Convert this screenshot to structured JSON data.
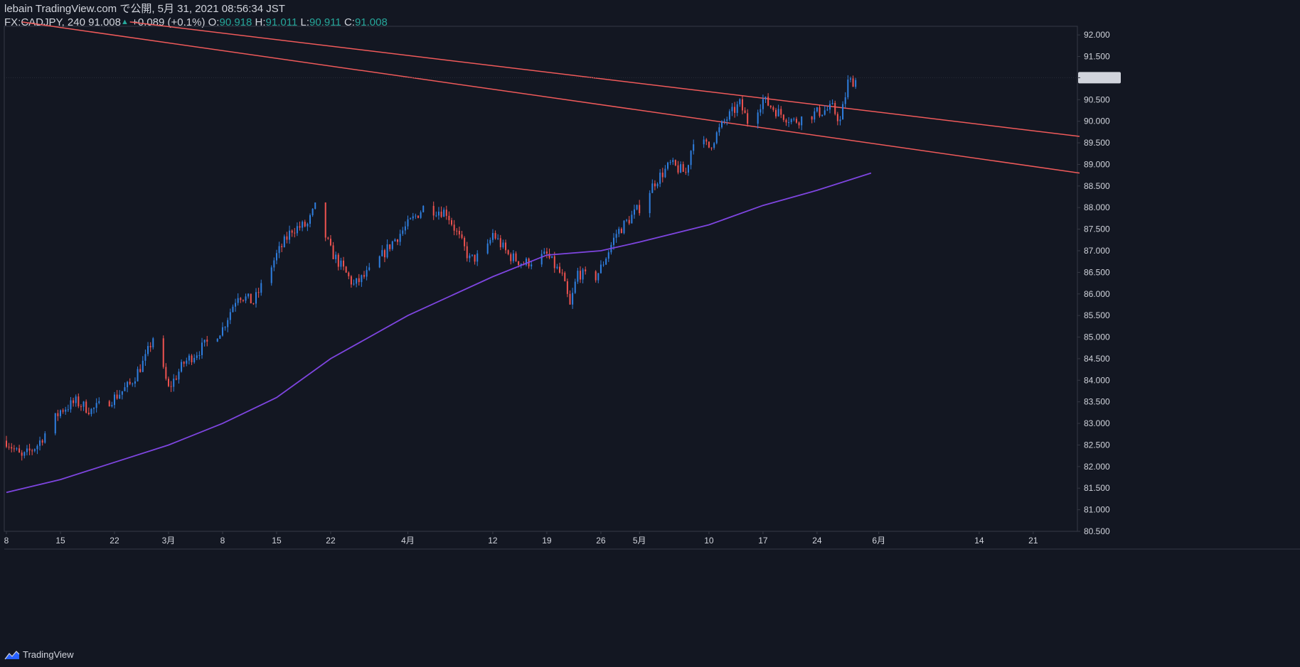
{
  "header": {
    "line1": "lebain TradingView.com で公開, 5月 31, 2021 08:56:34 JST",
    "symbol_prefix": "FX:CADJPY, 240 91.008",
    "arrow": "▲",
    "change": "+0.089 (+0.1%)",
    "o_label": "O:",
    "o_value": "90.918",
    "h_label": "H:",
    "h_value": "91.011",
    "l_label": "L:",
    "l_value": "90.911",
    "c_label": "C:",
    "c_value": "91.008"
  },
  "brand": {
    "name": "TradingView"
  },
  "colors": {
    "background": "#131722",
    "up": "#2f7fe0",
    "down": "#ef5350",
    "ma": "#7e45e0",
    "trendline": "#f05a5a",
    "last_price_bg": "#d1d4dc",
    "text": "#d1d4dc"
  },
  "chart_data": {
    "type": "candlestick",
    "symbol": "FX:CADJPY",
    "interval": "240",
    "last_price": "91.008",
    "x_tick_labels": [
      "8",
      "15",
      "22",
      "3月",
      "8",
      "15",
      "22",
      "4月",
      "12",
      "19",
      "26",
      "5月",
      "10",
      "17",
      "24",
      "6月",
      "14",
      "21"
    ],
    "x_tick_dates": [
      "2021-02-08",
      "2021-02-15",
      "2021-02-22",
      "2021-03-01",
      "2021-03-08",
      "2021-03-15",
      "2021-03-22",
      "2021-04-01",
      "2021-04-12",
      "2021-04-19",
      "2021-04-26",
      "2021-05-01",
      "2021-05-10",
      "2021-05-17",
      "2021-05-24",
      "2021-06-01",
      "2021-06-14",
      "2021-06-21"
    ],
    "y_tick_labels": [
      "92.000",
      "91.500",
      "91.008",
      "90.500",
      "90.000",
      "89.500",
      "89.000",
      "88.500",
      "88.000",
      "87.500",
      "87.000",
      "86.500",
      "86.000",
      "85.500",
      "85.000",
      "84.500",
      "84.000",
      "83.500",
      "83.000",
      "82.500",
      "82.000",
      "81.500",
      "81.000",
      "80.500"
    ],
    "ylim": [
      80.5,
      92.2
    ],
    "xlim": [
      "2021-02-08",
      "2021-06-27"
    ],
    "price_path": [
      [
        "2021-02-08",
        82.6
      ],
      [
        "2021-02-10",
        82.2
      ],
      [
        "2021-02-12",
        82.5
      ],
      [
        "2021-02-15",
        83.3
      ],
      [
        "2021-02-17",
        83.5
      ],
      [
        "2021-02-19",
        83.3
      ],
      [
        "2021-02-22",
        83.6
      ],
      [
        "2021-02-24",
        83.9
      ],
      [
        "2021-02-26",
        84.5
      ],
      [
        "2021-02-27",
        85.0
      ],
      [
        "2021-03-01",
        83.8
      ],
      [
        "2021-03-03",
        84.4
      ],
      [
        "2021-03-05",
        84.7
      ],
      [
        "2021-03-08",
        85.2
      ],
      [
        "2021-03-10",
        86.0
      ],
      [
        "2021-03-12",
        85.8
      ],
      [
        "2021-03-15",
        86.9
      ],
      [
        "2021-03-17",
        87.5
      ],
      [
        "2021-03-19",
        87.6
      ],
      [
        "2021-03-20",
        88.0
      ],
      [
        "2021-03-22",
        87.0
      ],
      [
        "2021-03-25",
        86.2
      ],
      [
        "2021-03-27",
        86.5
      ],
      [
        "2021-03-30",
        87.2
      ],
      [
        "2021-04-01",
        87.6
      ],
      [
        "2021-04-03",
        88.0
      ],
      [
        "2021-04-06",
        87.9
      ],
      [
        "2021-04-09",
        86.8
      ],
      [
        "2021-04-11",
        86.9
      ],
      [
        "2021-04-12",
        87.4
      ],
      [
        "2021-04-14",
        86.9
      ],
      [
        "2021-04-16",
        86.7
      ],
      [
        "2021-04-19",
        86.9
      ],
      [
        "2021-04-21",
        86.4
      ],
      [
        "2021-04-22",
        85.7
      ],
      [
        "2021-04-23",
        86.5
      ],
      [
        "2021-04-25",
        86.3
      ],
      [
        "2021-04-26",
        86.6
      ],
      [
        "2021-04-28",
        87.4
      ],
      [
        "2021-05-01",
        88.0
      ],
      [
        "2021-05-03",
        88.6
      ],
      [
        "2021-05-05",
        89.0
      ],
      [
        "2021-05-07",
        88.8
      ],
      [
        "2021-05-08",
        89.6
      ],
      [
        "2021-05-10",
        89.4
      ],
      [
        "2021-05-12",
        90.0
      ],
      [
        "2021-05-14",
        90.4
      ],
      [
        "2021-05-15",
        90.0
      ],
      [
        "2021-05-17",
        90.5
      ],
      [
        "2021-05-19",
        90.2
      ],
      [
        "2021-05-21",
        90.0
      ],
      [
        "2021-05-24",
        90.2
      ],
      [
        "2021-05-26",
        90.3
      ],
      [
        "2021-05-27",
        90.0
      ],
      [
        "2021-05-28",
        90.9
      ],
      [
        "2021-05-30",
        91.0
      ]
    ],
    "series": [
      {
        "type": "line",
        "points": [
          [
            "2021-02-08",
            81.4
          ],
          [
            "2021-02-15",
            81.7
          ],
          [
            "2021-02-22",
            82.1
          ],
          [
            "2021-03-01",
            82.5
          ],
          [
            "2021-03-08",
            83.0
          ],
          [
            "2021-03-15",
            83.6
          ],
          [
            "2021-03-22",
            84.5
          ],
          [
            "2021-04-01",
            85.5
          ],
          [
            "2021-04-12",
            86.4
          ],
          [
            "2021-04-19",
            86.9
          ],
          [
            "2021-04-26",
            87.0
          ],
          [
            "2021-05-01",
            87.2
          ],
          [
            "2021-05-10",
            87.6
          ],
          [
            "2021-05-17",
            88.05
          ],
          [
            "2021-05-24",
            88.4
          ],
          [
            "2021-05-31",
            88.8
          ]
        ]
      }
    ],
    "trendlines": [
      {
        "from": [
          "2021-02-10",
          92.3
        ],
        "to": [
          "2021-06-27",
          88.8
        ]
      },
      {
        "from": [
          "2021-02-24",
          92.3
        ],
        "to": [
          "2021-06-27",
          89.65
        ]
      }
    ],
    "grid": false,
    "legend": "none"
  }
}
